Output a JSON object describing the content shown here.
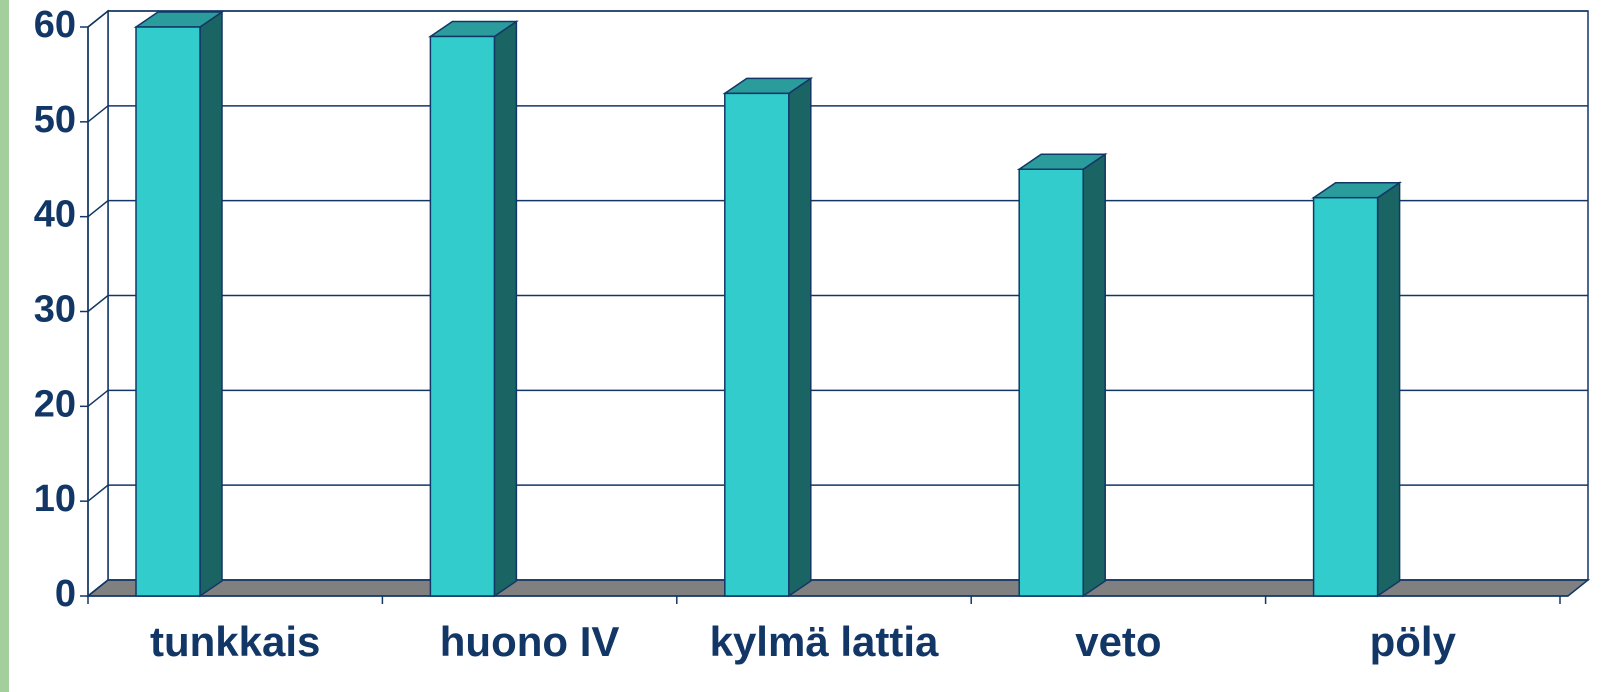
{
  "chart_data": {
    "type": "bar3d",
    "categories": [
      "tunkkais",
      "huono IV",
      "kylmä lattia",
      "veto",
      "pöly"
    ],
    "values": [
      60,
      59,
      53,
      45,
      42
    ],
    "color": "#33cccc",
    "ylim": [
      0,
      60
    ],
    "yticks": [
      0,
      10,
      20,
      30,
      40,
      50,
      60
    ],
    "grid": true
  }
}
